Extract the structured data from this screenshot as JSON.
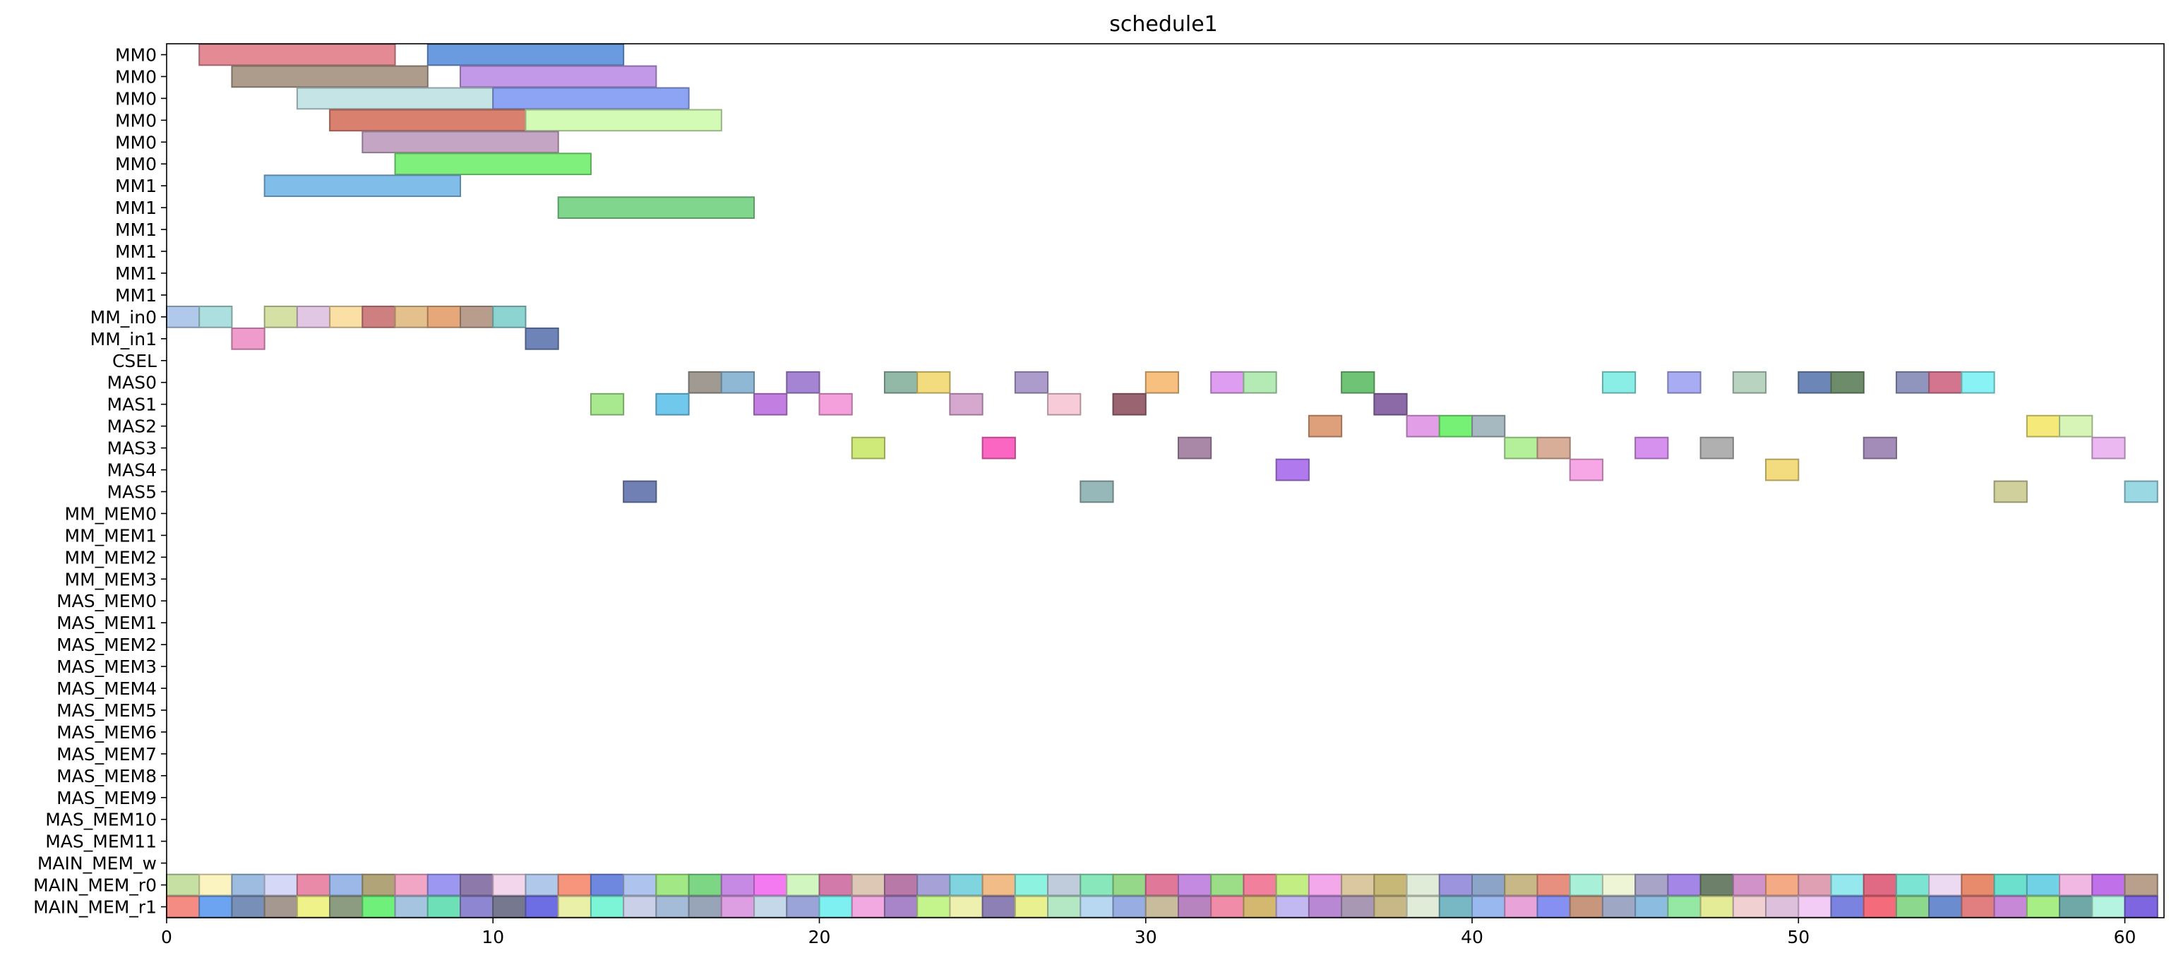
{
  "chart_data": {
    "type": "gantt",
    "title": "schedule1",
    "xlabel": "",
    "ylabel": "",
    "xlim": [
      0,
      61.2
    ],
    "x_ticks": [
      0,
      10,
      20,
      30,
      40,
      50,
      60
    ],
    "grid": false,
    "rows": [
      "MM0",
      "MM0",
      "MM0",
      "MM0",
      "MM0",
      "MM0",
      "MM1",
      "MM1",
      "MM1",
      "MM1",
      "MM1",
      "MM1",
      "MM_in0",
      "MM_in1",
      "CSEL",
      "MAS0",
      "MAS1",
      "MAS2",
      "MAS3",
      "MAS4",
      "MAS5",
      "MM_MEM0",
      "MM_MEM1",
      "MM_MEM2",
      "MM_MEM3",
      "MAS_MEM0",
      "MAS_MEM1",
      "MAS_MEM2",
      "MAS_MEM3",
      "MAS_MEM4",
      "MAS_MEM5",
      "MAS_MEM6",
      "MAS_MEM7",
      "MAS_MEM8",
      "MAS_MEM9",
      "MAS_MEM10",
      "MAS_MEM11",
      "MAIN_MEM_w",
      "MAIN_MEM_r0",
      "MAIN_MEM_r1"
    ],
    "tasks": [
      {
        "row": 0,
        "start": 1,
        "end": 7,
        "color": "#e38a95"
      },
      {
        "row": 0,
        "start": 8,
        "end": 14,
        "color": "#6a9be0"
      },
      {
        "row": 1,
        "start": 2,
        "end": 8,
        "color": "#ad9c8c"
      },
      {
        "row": 1,
        "start": 9,
        "end": 15,
        "color": "#c299e8"
      },
      {
        "row": 2,
        "start": 4,
        "end": 10,
        "color": "#c4e4e6"
      },
      {
        "row": 2,
        "start": 10,
        "end": 16,
        "color": "#8da4f5"
      },
      {
        "row": 3,
        "start": 5,
        "end": 11,
        "color": "#d9806e"
      },
      {
        "row": 3,
        "start": 11,
        "end": 17,
        "color": "#d4fbb6"
      },
      {
        "row": 4,
        "start": 6,
        "end": 12,
        "color": "#c4a6c4"
      },
      {
        "row": 5,
        "start": 7,
        "end": 13,
        "color": "#80f07d"
      },
      {
        "row": 6,
        "start": 3,
        "end": 9,
        "color": "#80bde8"
      },
      {
        "row": 7,
        "start": 12,
        "end": 18,
        "color": "#80d68d"
      },
      {
        "row": 12,
        "start": 0,
        "end": 1,
        "color": "#b0c8ea"
      },
      {
        "row": 12,
        "start": 1,
        "end": 2,
        "color": "#acdfdf"
      },
      {
        "row": 12,
        "start": 3,
        "end": 4,
        "color": "#d4e0a4"
      },
      {
        "row": 12,
        "start": 4,
        "end": 5,
        "color": "#e2c7e4"
      },
      {
        "row": 12,
        "start": 5,
        "end": 6,
        "color": "#fbe0a6"
      },
      {
        "row": 12,
        "start": 6,
        "end": 7,
        "color": "#ce7f80"
      },
      {
        "row": 12,
        "start": 7,
        "end": 8,
        "color": "#e4c08c"
      },
      {
        "row": 12,
        "start": 8,
        "end": 9,
        "color": "#e6a878"
      },
      {
        "row": 12,
        "start": 9,
        "end": 10,
        "color": "#b89c8c"
      },
      {
        "row": 12,
        "start": 10,
        "end": 11,
        "color": "#8cd4d2"
      },
      {
        "row": 13,
        "start": 2,
        "end": 3,
        "color": "#ef9ccd"
      },
      {
        "row": 13,
        "start": 11,
        "end": 12,
        "color": "#6e84b8"
      },
      {
        "row": 15,
        "start": 16,
        "end": 17,
        "color": "#a19a92"
      },
      {
        "row": 15,
        "start": 17,
        "end": 18,
        "color": "#8fb8d4"
      },
      {
        "row": 15,
        "start": 19,
        "end": 20,
        "color": "#a684d4"
      },
      {
        "row": 15,
        "start": 22,
        "end": 23,
        "color": "#92b8a8"
      },
      {
        "row": 15,
        "start": 23,
        "end": 24,
        "color": "#f2dc7e"
      },
      {
        "row": 15,
        "start": 26,
        "end": 27,
        "color": "#ab9ccc"
      },
      {
        "row": 15,
        "start": 30,
        "end": 31,
        "color": "#f7c07e"
      },
      {
        "row": 15,
        "start": 32,
        "end": 33,
        "color": "#df9df2"
      },
      {
        "row": 15,
        "start": 33,
        "end": 34,
        "color": "#b4eab4"
      },
      {
        "row": 15,
        "start": 36,
        "end": 37,
        "color": "#6ec474"
      },
      {
        "row": 15,
        "start": 44,
        "end": 45,
        "color": "#8aeee6"
      },
      {
        "row": 15,
        "start": 46,
        "end": 47,
        "color": "#a8acf2"
      },
      {
        "row": 15,
        "start": 48,
        "end": 49,
        "color": "#b8d4c0"
      },
      {
        "row": 15,
        "start": 50,
        "end": 51,
        "color": "#6c86b8"
      },
      {
        "row": 15,
        "start": 51,
        "end": 52,
        "color": "#6d8c6a"
      },
      {
        "row": 15,
        "start": 53,
        "end": 54,
        "color": "#8f95bd"
      },
      {
        "row": 15,
        "start": 54,
        "end": 55,
        "color": "#d3758f"
      },
      {
        "row": 15,
        "start": 55,
        "end": 56,
        "color": "#88f2f5"
      },
      {
        "row": 16,
        "start": 13,
        "end": 14,
        "color": "#a8e88e"
      },
      {
        "row": 16,
        "start": 15,
        "end": 16,
        "color": "#70c8ec"
      },
      {
        "row": 16,
        "start": 18,
        "end": 19,
        "color": "#c27ee0"
      },
      {
        "row": 16,
        "start": 20,
        "end": 21,
        "color": "#f3a0dc"
      },
      {
        "row": 16,
        "start": 24,
        "end": 25,
        "color": "#d6a8d0"
      },
      {
        "row": 16,
        "start": 27,
        "end": 28,
        "color": "#f7ccd8"
      },
      {
        "row": 16,
        "start": 29,
        "end": 30,
        "color": "#9a6470"
      },
      {
        "row": 16,
        "start": 37,
        "end": 38,
        "color": "#8c6aa8"
      },
      {
        "row": 17,
        "start": 35,
        "end": 36,
        "color": "#dea07a"
      },
      {
        "row": 17,
        "start": 38,
        "end": 39,
        "color": "#e29ee6"
      },
      {
        "row": 17,
        "start": 39,
        "end": 40,
        "color": "#76f075"
      },
      {
        "row": 17,
        "start": 40,
        "end": 41,
        "color": "#a6b8c0"
      },
      {
        "row": 17,
        "start": 57,
        "end": 58,
        "color": "#f5e97a"
      },
      {
        "row": 17,
        "start": 58,
        "end": 59,
        "color": "#d6f5b6"
      },
      {
        "row": 18,
        "start": 21,
        "end": 22,
        "color": "#d0ea7a"
      },
      {
        "row": 18,
        "start": 25,
        "end": 26,
        "color": "#fb66c2"
      },
      {
        "row": 18,
        "start": 31,
        "end": 32,
        "color": "#a888a6"
      },
      {
        "row": 18,
        "start": 41,
        "end": 42,
        "color": "#b4f09a"
      },
      {
        "row": 18,
        "start": 42,
        "end": 43,
        "color": "#d8ae98"
      },
      {
        "row": 18,
        "start": 45,
        "end": 46,
        "color": "#d690ee"
      },
      {
        "row": 18,
        "start": 47,
        "end": 48,
        "color": "#b0b0b0"
      },
      {
        "row": 18,
        "start": 52,
        "end": 53,
        "color": "#a48cb8"
      },
      {
        "row": 18,
        "start": 59,
        "end": 60,
        "color": "#ecb8f2"
      },
      {
        "row": 19,
        "start": 34,
        "end": 35,
        "color": "#b07aee"
      },
      {
        "row": 19,
        "start": 43,
        "end": 44,
        "color": "#f7a6e6"
      },
      {
        "row": 19,
        "start": 49,
        "end": 50,
        "color": "#f3dc80"
      },
      {
        "row": 20,
        "start": 14,
        "end": 15,
        "color": "#7080b4"
      },
      {
        "row": 20,
        "start": 28,
        "end": 29,
        "color": "#96b8b8"
      },
      {
        "row": 20,
        "start": 56,
        "end": 57,
        "color": "#d0d09c"
      },
      {
        "row": 20,
        "start": 60,
        "end": 61,
        "color": "#9ad8e4"
      }
    ],
    "main_mem_r0_colors": [
      "#c6e0a4",
      "#fbf4c0",
      "#9ebce0",
      "#d6d8f8",
      "#e88aa8",
      "#9cb8e8",
      "#b0a478",
      "#f2a6c6",
      "#9c98f2",
      "#8e7aaa",
      "#f4d6ec",
      "#b0c8ea",
      "#f6947c",
      "#6e88e0",
      "#aec4ee",
      "#a2e884",
      "#7cd684",
      "#c68ae4",
      "#f47af2",
      "#d2f6c0",
      "#d27aaa",
      "#dcc8b4",
      "#b878a8",
      "#a6a2d8",
      "#80d4e0",
      "#f2bc88",
      "#8ef2e0",
      "#c0ccdc",
      "#88e8bc",
      "#96d88a",
      "#e0789a",
      "#c48ae2",
      "#9cde88",
      "#f0809c",
      "#c2ee84",
      "#f4a8ec",
      "#dcc8a0",
      "#c8b878",
      "#e0ecd8",
      "#9c94dc",
      "#8ca4c8",
      "#c8b888",
      "#e89080",
      "#a8f0d8",
      "#eef4d6",
      "#a8a4c8",
      "#a486e6",
      "#6c806a",
      "#d092c8",
      "#f4aa84",
      "#e0a0b4",
      "#94e8ee",
      "#e06a84",
      "#7ce4d2",
      "#ecdaf2",
      "#e88a6c",
      "#6ce0cc",
      "#70d2e4",
      "#f2b8e4",
      "#c071ea",
      "#b8a08c"
    ],
    "main_mem_r1_colors": [
      "#f48c84",
      "#6ca4f2",
      "#7890b8",
      "#a49890",
      "#eef288",
      "#8c9c80",
      "#6ef07a",
      "#a4c4e0",
      "#6ee0b8",
      "#8e86d0",
      "#767890",
      "#6e6ee4",
      "#eaf0a8",
      "#7cf4d6",
      "#cad0e8",
      "#a4bcd8",
      "#98a4b8",
      "#de9ee2",
      "#c4d8ea",
      "#9aa4d8",
      "#7ef0f2",
      "#f2a8e0",
      "#a884c8",
      "#c4f48c",
      "#eef0b0",
      "#8c80b4",
      "#e8f090",
      "#b4e8c4",
      "#b8d8f2",
      "#98aee2",
      "#c8bc9c",
      "#b884c0",
      "#f08ca8",
      "#d4b870",
      "#c2b8f2",
      "#b888d4",
      "#a898b4",
      "#c8b888",
      "#e0ecd8",
      "#78b8c4",
      "#9ab8f0",
      "#e8a4d8",
      "#8690f2",
      "#c8967c",
      "#9ea8c4",
      "#8cbce0",
      "#94e8a4",
      "#e4ec98",
      "#f0d0d0",
      "#dcc0dc",
      "#f2ccf4",
      "#7a84e0",
      "#f46c7c",
      "#8cd88c",
      "#6c8cd0",
      "#e07e80",
      "#c888d8",
      "#a8ee86",
      "#70a8a8",
      "#b4f4e0",
      "#7e66e0"
    ]
  }
}
